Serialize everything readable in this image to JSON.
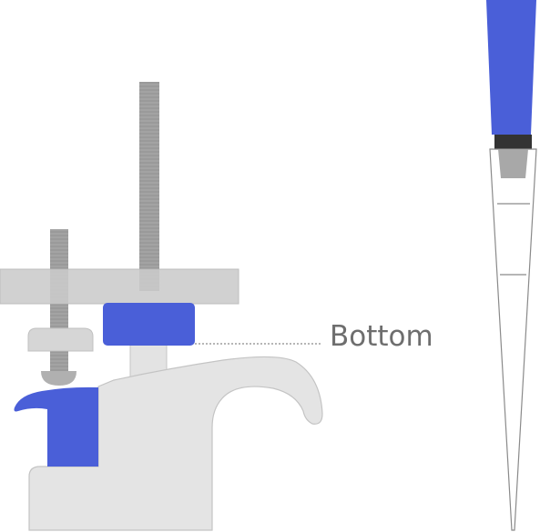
{
  "diagram": {
    "labels": {
      "bottom": "Bottom"
    },
    "colors": {
      "accent_blue": "#4a5fd8",
      "bracket_gray": "#e2e2e2",
      "bracket_stroke": "#c4c4c4",
      "plate_gray": "#c8c8c8",
      "rod_gray": "#a2a2a2",
      "rod_thread": "#8d8d8d",
      "label_gray": "#6e6e6e",
      "tip_stroke": "#8a8a8a",
      "dark_collar": "#333333",
      "plug_gray": "#a8a8a8"
    },
    "icons": {
      "clamp": "bracket-clamp-icon",
      "pipette": "pipette-tip-icon"
    }
  }
}
